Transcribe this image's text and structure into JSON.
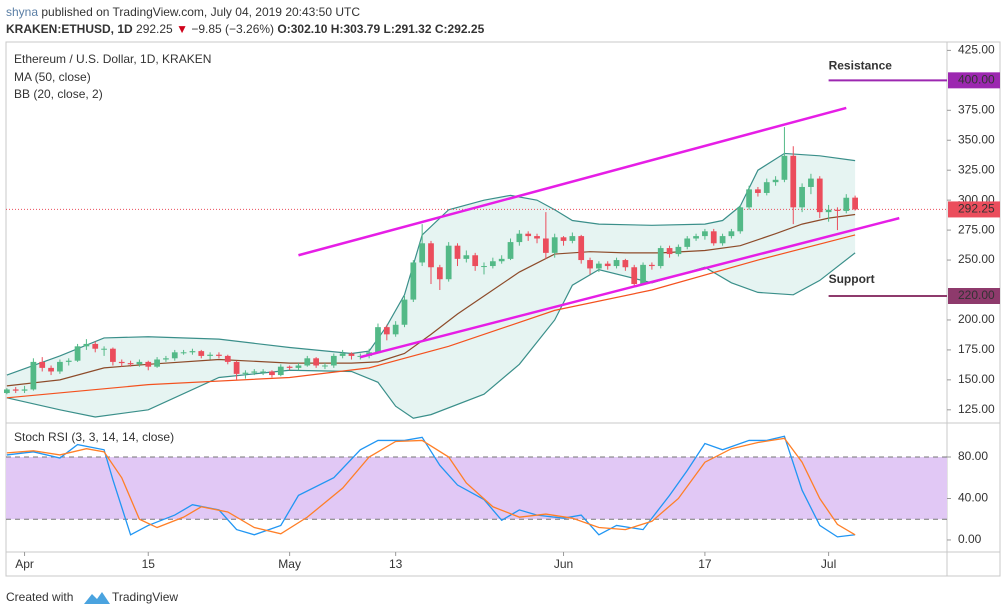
{
  "header": {
    "author": "shyna",
    "published": "published on TradingView.com, July 04, 2019 20:43:50 UTC",
    "symbol": "KRAKEN:ETHUSD, 1D",
    "last": "292.25",
    "arrow": "▼",
    "change": "−9.85 (−3.26%)",
    "open": "O:302.10",
    "high": "H:303.79",
    "low": "L:291.32",
    "close": "C:292.25"
  },
  "footer": {
    "created": "Created with",
    "brand": "TradingView"
  },
  "chart_data": [
    {
      "type": "candlestick",
      "title": "Ethereum / U.S. Dollar, 1D, KRAKEN",
      "up_color": "#53b987",
      "down_color": "#eb4d5c",
      "candles": [
        [
          139,
          143,
          138,
          142
        ],
        [
          142,
          144,
          139,
          141
        ],
        [
          141,
          145,
          139,
          142
        ],
        [
          142,
          168,
          141,
          165
        ],
        [
          165,
          169,
          157,
          160
        ],
        [
          160,
          162,
          154,
          157
        ],
        [
          157,
          167,
          155,
          165
        ],
        [
          165,
          168,
          162,
          166
        ],
        [
          166,
          180,
          165,
          178
        ],
        [
          178,
          184,
          175,
          180
        ],
        [
          180,
          182,
          173,
          176
        ],
        [
          176,
          178,
          170,
          176
        ],
        [
          176,
          177,
          162,
          165
        ],
        [
          165,
          167,
          161,
          164
        ],
        [
          164,
          166,
          161,
          163
        ],
        [
          163,
          167,
          161,
          165
        ],
        [
          165,
          166,
          158,
          161
        ],
        [
          161,
          169,
          160,
          167
        ],
        [
          167,
          170,
          165,
          168
        ],
        [
          168,
          175,
          166,
          173
        ],
        [
          173,
          175,
          171,
          173
        ],
        [
          173,
          176,
          171,
          174
        ],
        [
          174,
          175,
          168,
          170
        ],
        [
          170,
          173,
          167,
          171
        ],
        [
          171,
          173,
          168,
          170
        ],
        [
          170,
          171,
          163,
          165
        ],
        [
          165,
          166,
          150,
          155
        ],
        [
          155,
          158,
          151,
          156
        ],
        [
          156,
          159,
          154,
          157
        ],
        [
          157,
          159,
          154,
          157
        ],
        [
          157,
          158,
          152,
          154
        ],
        [
          154,
          163,
          153,
          161
        ],
        [
          161,
          162,
          158,
          160
        ],
        [
          160,
          164,
          158,
          162
        ],
        [
          162,
          170,
          161,
          168
        ],
        [
          168,
          169,
          160,
          162
        ],
        [
          162,
          164,
          159,
          162
        ],
        [
          162,
          172,
          160,
          170
        ],
        [
          170,
          175,
          168,
          172
        ],
        [
          172,
          173,
          167,
          170
        ],
        [
          170,
          172,
          167,
          170
        ],
        [
          170,
          176,
          168,
          173
        ],
        [
          173,
          197,
          172,
          194
        ],
        [
          194,
          196,
          183,
          188
        ],
        [
          188,
          199,
          186,
          196
        ],
        [
          196,
          220,
          194,
          217
        ],
        [
          217,
          250,
          215,
          248
        ],
        [
          248,
          280,
          245,
          264
        ],
        [
          264,
          266,
          230,
          244
        ],
        [
          244,
          246,
          225,
          234
        ],
        [
          234,
          265,
          232,
          262
        ],
        [
          262,
          264,
          245,
          251
        ],
        [
          251,
          258,
          248,
          254
        ],
        [
          254,
          256,
          241,
          245
        ],
        [
          245,
          248,
          238,
          245
        ],
        [
          245,
          252,
          243,
          249
        ],
        [
          249,
          254,
          247,
          251
        ],
        [
          251,
          268,
          250,
          265
        ],
        [
          265,
          275,
          262,
          272
        ],
        [
          272,
          274,
          266,
          270
        ],
        [
          270,
          272,
          264,
          268
        ],
        [
          268,
          290,
          251,
          256
        ],
        [
          256,
          272,
          252,
          269
        ],
        [
          269,
          270,
          262,
          266
        ],
        [
          266,
          273,
          264,
          270
        ],
        [
          270,
          271,
          247,
          250
        ],
        [
          250,
          252,
          238,
          243
        ],
        [
          243,
          249,
          240,
          247
        ],
        [
          247,
          249,
          242,
          245
        ],
        [
          245,
          252,
          243,
          250
        ],
        [
          250,
          251,
          241,
          244
        ],
        [
          244,
          246,
          228,
          230
        ],
        [
          230,
          248,
          229,
          246
        ],
        [
          246,
          248,
          242,
          245
        ],
        [
          245,
          262,
          243,
          260
        ],
        [
          260,
          262,
          252,
          255
        ],
        [
          255,
          263,
          253,
          261
        ],
        [
          261,
          270,
          259,
          268
        ],
        [
          268,
          272,
          266,
          270
        ],
        [
          270,
          276,
          267,
          274
        ],
        [
          274,
          276,
          262,
          264
        ],
        [
          264,
          272,
          262,
          270
        ],
        [
          270,
          276,
          268,
          274
        ],
        [
          274,
          296,
          272,
          294
        ],
        [
          294,
          312,
          292,
          309
        ],
        [
          309,
          311,
          303,
          306
        ],
        [
          306,
          318,
          304,
          315
        ],
        [
          315,
          320,
          312,
          317
        ],
        [
          317,
          361,
          315,
          337
        ],
        [
          337,
          345,
          280,
          294
        ],
        [
          294,
          314,
          290,
          311
        ],
        [
          311,
          322,
          305,
          318
        ],
        [
          318,
          320,
          285,
          290
        ],
        [
          290,
          296,
          282,
          292
        ],
        [
          292,
          294,
          275,
          291
        ],
        [
          291,
          305,
          289,
          302
        ],
        [
          302.1,
          303.79,
          291.32,
          292.25
        ]
      ],
      "ma": {
        "name": "MA (50, close)",
        "color": "#f4511e",
        "x": [
          0,
          16,
          32,
          41,
          50,
          62,
          73,
          85,
          96
        ],
        "values": [
          135,
          146,
          152,
          160,
          178,
          208,
          225,
          250,
          271
        ]
      },
      "bb": {
        "name": "BB (20, close, 2)",
        "band_color": "#3a8f8a",
        "basis_color": "#8d4b2a",
        "fill": "#e6f4f2",
        "upper": {
          "x": [
            0,
            6,
            11,
            16,
            24,
            32,
            39,
            41,
            43,
            45,
            47,
            50,
            54,
            57,
            60,
            62,
            64,
            67,
            73,
            79,
            81,
            83,
            85,
            88,
            92,
            96
          ],
          "values": [
            154,
            170,
            185,
            186,
            184,
            177,
            172,
            174,
            195,
            221,
            271,
            292,
            300,
            304,
            300,
            292,
            283,
            280,
            279,
            280,
            283,
            295,
            325,
            339,
            337,
            333
          ]
        },
        "basis": {
          "x": [
            0,
            6,
            11,
            16,
            24,
            32,
            39,
            42,
            45,
            48,
            51,
            54,
            58,
            62,
            66,
            70,
            74,
            79,
            83,
            87,
            90,
            93,
            96
          ],
          "values": [
            145,
            150,
            160,
            163,
            167,
            164,
            164,
            165,
            172,
            188,
            205,
            220,
            240,
            255,
            257,
            256,
            256,
            258,
            262,
            272,
            280,
            285,
            288
          ]
        },
        "lower": {
          "x": [
            0,
            6,
            10,
            16,
            24,
            32,
            39,
            42,
            44,
            46,
            48,
            54,
            58,
            62,
            64,
            67,
            73,
            79,
            82,
            85,
            89,
            92,
            96
          ],
          "values": [
            135,
            125,
            119,
            125,
            152,
            158,
            157,
            148,
            128,
            118,
            121,
            138,
            163,
            200,
            229,
            242,
            231,
            244,
            231,
            223,
            221,
            233,
            256
          ]
        }
      },
      "trendlines": {
        "color": "#e61ee6",
        "lines": [
          {
            "x": [
              33,
              95
            ],
            "values": [
              254,
              377
            ]
          },
          {
            "x": [
              40,
              101
            ],
            "values": [
              169,
              285
            ]
          }
        ]
      },
      "resistance": {
        "text": "Resistance",
        "text_color": "#d0021b",
        "color": "#9c27b0",
        "from": 93,
        "value": 400,
        "label": "400.00"
      },
      "support": {
        "text": "Support",
        "text_color": "#333333",
        "color": "#8e3a6c",
        "from": 93,
        "value": 220,
        "label": "220.00"
      },
      "last_price": {
        "value": 292.25,
        "label": "292.25",
        "color": "#eb4d5c"
      },
      "xlim": [
        -0.1,
        106.4
      ],
      "ylim": [
        114,
        432
      ],
      "xticks": [
        {
          "value": 2,
          "label": "Apr"
        },
        {
          "value": 16,
          "label": "15"
        },
        {
          "value": 32,
          "label": "May"
        },
        {
          "value": 44,
          "label": "13"
        },
        {
          "value": 63,
          "label": "Jun"
        },
        {
          "value": 79,
          "label": "17"
        },
        {
          "value": 93,
          "label": "Jul"
        }
      ],
      "yticks": [
        {
          "value": 125,
          "label": "125.00"
        },
        {
          "value": 150,
          "label": "150.00"
        },
        {
          "value": 175,
          "label": "175.00"
        },
        {
          "value": 200,
          "label": "200.00"
        },
        {
          "value": 250,
          "label": "250.00"
        },
        {
          "value": 275,
          "label": "275.00"
        },
        {
          "value": 300,
          "label": "300.00"
        },
        {
          "value": 325,
          "label": "325.00"
        },
        {
          "value": 350,
          "label": "350.00"
        },
        {
          "value": 375,
          "label": "375.00"
        },
        {
          "value": 425,
          "label": "425.00"
        }
      ]
    },
    {
      "type": "line",
      "title": "Stoch RSI (3, 3, 14, 14, close)",
      "xlim": [
        -0.1,
        106.4
      ],
      "ylim": [
        -11.6,
        112.8
      ],
      "band": [
        20,
        80
      ],
      "band_color": "#e1c8f5",
      "yticks": [
        {
          "value": 0,
          "label": "0.00"
        },
        {
          "value": 40,
          "label": "40.00"
        },
        {
          "value": 80,
          "label": "80.00"
        }
      ],
      "series": [
        {
          "color": "#2196f3",
          "x": [
            0,
            3,
            6,
            8,
            11,
            12,
            14,
            16,
            19,
            21,
            24,
            26,
            28,
            31,
            33,
            37,
            40,
            42,
            45,
            47,
            49,
            51,
            54,
            56,
            58,
            60,
            63,
            65,
            67,
            69,
            72,
            75,
            77,
            79,
            81,
            84,
            86,
            88,
            90,
            92,
            94,
            96
          ],
          "values": [
            82,
            85,
            79,
            92,
            87,
            58,
            5,
            14,
            24,
            34,
            29,
            10,
            5,
            14,
            43,
            60,
            87,
            96,
            96,
            99,
            72,
            53,
            39,
            19,
            29,
            24,
            21,
            24,
            5,
            14,
            10,
            43,
            67,
            93,
            87,
            96,
            96,
            100,
            48,
            14,
            3,
            5
          ]
        },
        {
          "color": "#ff7f27",
          "x": [
            0,
            3,
            6,
            9,
            11,
            13,
            15,
            17,
            20,
            22,
            25,
            28,
            31,
            34,
            38,
            41,
            44,
            47,
            50,
            52,
            55,
            58,
            61,
            64,
            67,
            70,
            73,
            76,
            79,
            82,
            85,
            88,
            90,
            92,
            94,
            96
          ],
          "values": [
            84,
            86,
            82,
            88,
            85,
            60,
            20,
            12,
            22,
            32,
            27,
            12,
            6,
            22,
            50,
            80,
            95,
            96,
            80,
            55,
            32,
            22,
            25,
            21,
            12,
            10,
            18,
            40,
            75,
            88,
            94,
            98,
            75,
            40,
            15,
            5
          ]
        }
      ]
    }
  ]
}
